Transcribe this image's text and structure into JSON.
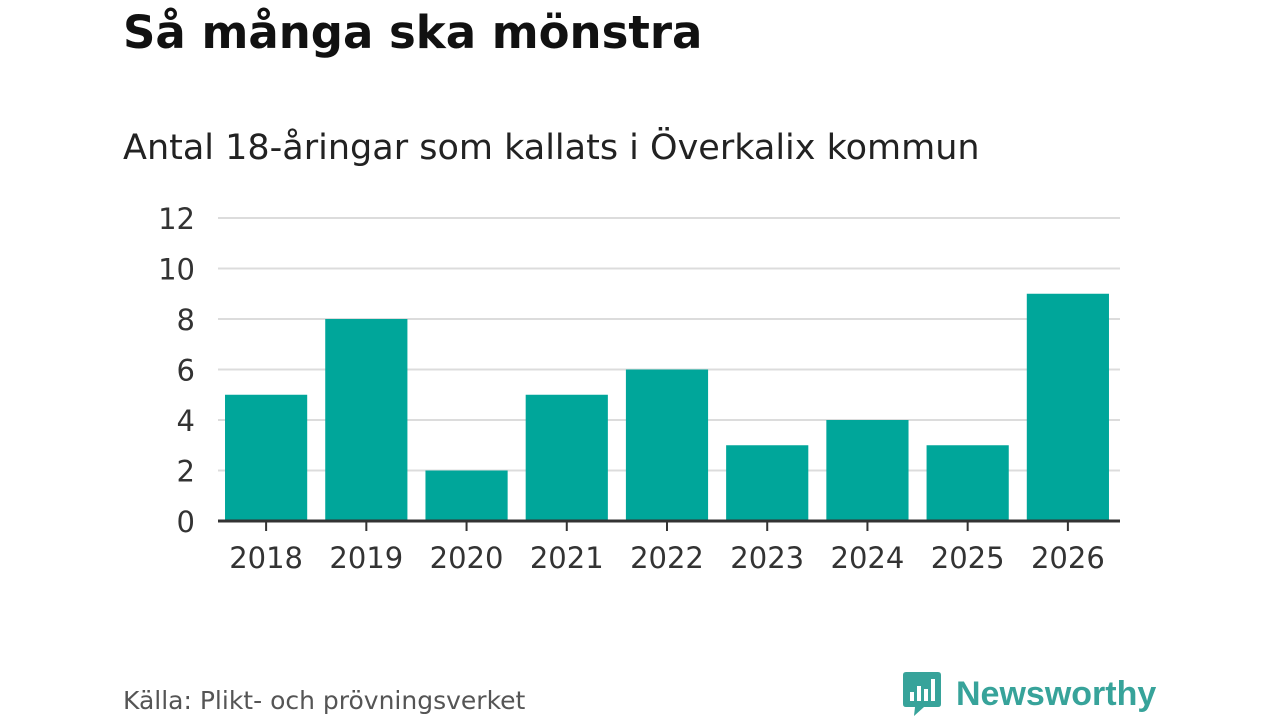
{
  "title": "Så många ska mönstra",
  "subtitle": "Antal 18-åringar som kallats i Överkalix kommun",
  "source": "Källa: Plikt- och prövningsverket",
  "brand": {
    "name": "Newsworthy",
    "icon": "newsworthy-logo-icon",
    "color": "#37a39a"
  },
  "chart_data": {
    "type": "bar",
    "categories": [
      "2018",
      "2019",
      "2020",
      "2021",
      "2022",
      "2023",
      "2024",
      "2025",
      "2026"
    ],
    "values": [
      5,
      8,
      2,
      5,
      6,
      3,
      4,
      3,
      9
    ],
    "ylim": [
      0,
      12
    ],
    "yticks": [
      0,
      2,
      4,
      6,
      8,
      10,
      12
    ],
    "grid": true,
    "bar_color": "#00a69a",
    "title": "Så många ska mönstra",
    "subtitle": "Antal 18-åringar som kallats i Överkalix kommun"
  }
}
